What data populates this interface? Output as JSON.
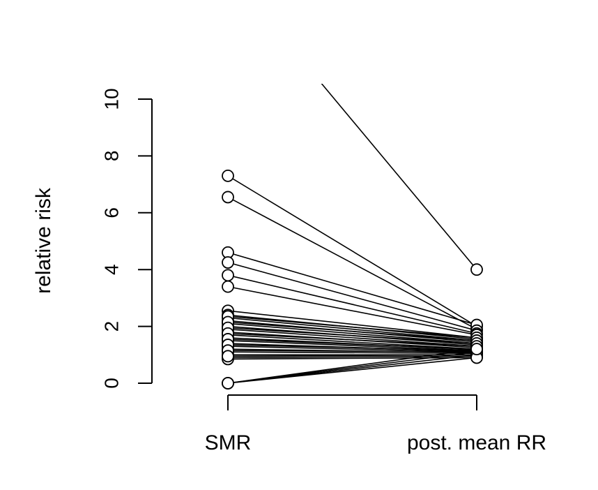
{
  "chart_data": {
    "type": "line",
    "title": "",
    "xlabel": "",
    "ylabel": "relative risk",
    "categories": [
      "SMR",
      "post. mean RR"
    ],
    "ylim": [
      0,
      10
    ],
    "yticks": [
      0,
      2,
      4,
      6,
      8,
      10
    ],
    "grid": false,
    "legend": "none",
    "segments": [
      {
        "start": 14.5,
        "end": 4.0
      },
      {
        "start": 7.3,
        "end": 2.0
      },
      {
        "start": 6.55,
        "end": 1.9
      },
      {
        "start": 4.6,
        "end": 2.05
      },
      {
        "start": 4.25,
        "end": 1.85
      },
      {
        "start": 3.8,
        "end": 1.75
      },
      {
        "start": 3.4,
        "end": 1.7
      },
      {
        "start": 2.55,
        "end": 1.6
      },
      {
        "start": 2.4,
        "end": 1.55
      },
      {
        "start": 2.3,
        "end": 1.5
      },
      {
        "start": 2.2,
        "end": 1.45
      },
      {
        "start": 2.1,
        "end": 1.4
      },
      {
        "start": 2.0,
        "end": 1.35
      },
      {
        "start": 1.9,
        "end": 1.3
      },
      {
        "start": 1.8,
        "end": 1.25
      },
      {
        "start": 1.7,
        "end": 1.2
      },
      {
        "start": 1.6,
        "end": 1.18
      },
      {
        "start": 1.5,
        "end": 1.15
      },
      {
        "start": 1.4,
        "end": 1.12
      },
      {
        "start": 1.3,
        "end": 1.1
      },
      {
        "start": 1.2,
        "end": 1.08
      },
      {
        "start": 1.1,
        "end": 1.05
      },
      {
        "start": 1.0,
        "end": 1.0
      },
      {
        "start": 0.9,
        "end": 0.95
      },
      {
        "start": 0.85,
        "end": 0.9
      },
      {
        "start": 2.35,
        "end": 1.6
      },
      {
        "start": 2.15,
        "end": 1.5
      },
      {
        "start": 1.95,
        "end": 1.4
      },
      {
        "start": 1.75,
        "end": 1.3
      },
      {
        "start": 1.55,
        "end": 1.2
      },
      {
        "start": 1.35,
        "end": 1.15
      },
      {
        "start": 1.15,
        "end": 1.1
      },
      {
        "start": 0.95,
        "end": 1.0
      },
      {
        "start": 0.0,
        "end": 1.1
      },
      {
        "start": 0.0,
        "end": 1.0
      },
      {
        "start": 0.0,
        "end": 0.9
      },
      {
        "start": 0.0,
        "end": 1.2
      }
    ]
  }
}
